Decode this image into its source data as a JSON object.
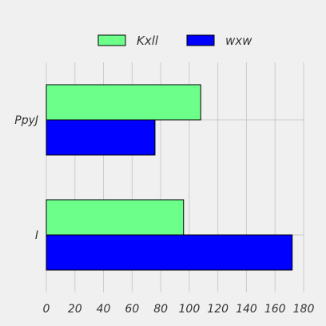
{
  "chart_data": {
    "type": "bar",
    "orientation": "horizontal",
    "categories": [
      "PpyJ",
      "I"
    ],
    "series": [
      {
        "name": "Kxll",
        "values": [
          108,
          96
        ],
        "color": "#6cff8a"
      },
      {
        "name": "wxw",
        "values": [
          76,
          172
        ],
        "color": "#0000ff"
      }
    ],
    "xlim": [
      0,
      180
    ],
    "x_ticks": [
      0,
      20,
      40,
      60,
      80,
      100,
      120,
      140,
      160,
      180
    ],
    "grid": true,
    "legend_position": "top-center",
    "background": "#f0f0f0"
  }
}
